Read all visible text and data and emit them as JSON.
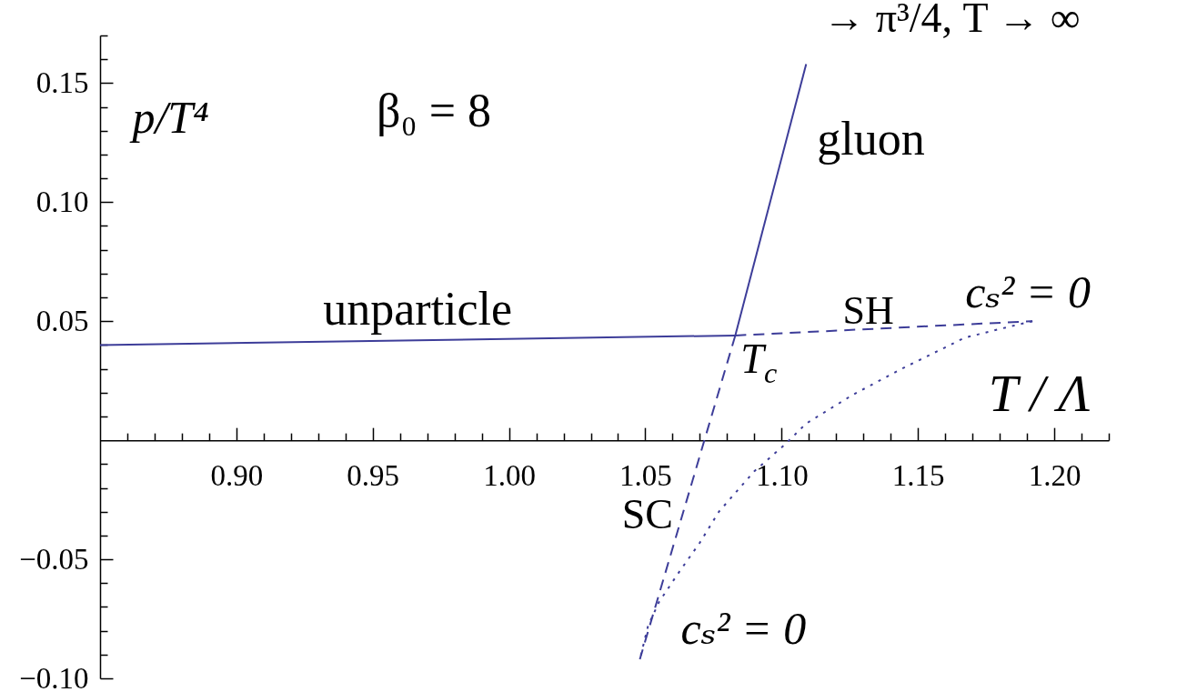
{
  "chart_data": {
    "type": "line",
    "xlabel": "T / Λ",
    "ylabel": "p/T⁴",
    "xlim": [
      0.85,
      1.22
    ],
    "ylim": [
      -0.1,
      0.17
    ],
    "xticks": [
      {
        "value": 0.86,
        "label": null
      },
      {
        "value": 0.87,
        "label": null
      },
      {
        "value": 0.88,
        "label": null
      },
      {
        "value": 0.89,
        "label": null
      },
      {
        "value": 0.9,
        "label": "0.90"
      },
      {
        "value": 0.91,
        "label": null
      },
      {
        "value": 0.92,
        "label": null
      },
      {
        "value": 0.93,
        "label": null
      },
      {
        "value": 0.94,
        "label": null
      },
      {
        "value": 0.95,
        "label": "0.95"
      },
      {
        "value": 0.96,
        "label": null
      },
      {
        "value": 0.97,
        "label": null
      },
      {
        "value": 0.98,
        "label": null
      },
      {
        "value": 0.99,
        "label": null
      },
      {
        "value": 1.0,
        "label": "1.00"
      },
      {
        "value": 1.01,
        "label": null
      },
      {
        "value": 1.02,
        "label": null
      },
      {
        "value": 1.03,
        "label": null
      },
      {
        "value": 1.04,
        "label": null
      },
      {
        "value": 1.05,
        "label": "1.05"
      },
      {
        "value": 1.06,
        "label": null
      },
      {
        "value": 1.07,
        "label": null
      },
      {
        "value": 1.08,
        "label": null
      },
      {
        "value": 1.09,
        "label": null
      },
      {
        "value": 1.1,
        "label": "1.10"
      },
      {
        "value": 1.11,
        "label": null
      },
      {
        "value": 1.12,
        "label": null
      },
      {
        "value": 1.13,
        "label": null
      },
      {
        "value": 1.14,
        "label": null
      },
      {
        "value": 1.15,
        "label": "1.15"
      },
      {
        "value": 1.16,
        "label": null
      },
      {
        "value": 1.17,
        "label": null
      },
      {
        "value": 1.18,
        "label": null
      },
      {
        "value": 1.19,
        "label": null
      },
      {
        "value": 1.2,
        "label": "1.20"
      },
      {
        "value": 1.21,
        "label": null
      },
      {
        "value": 1.22,
        "label": null
      }
    ],
    "yticks": [
      {
        "value": -0.1,
        "label": "−0.10"
      },
      {
        "value": -0.09,
        "label": null
      },
      {
        "value": -0.08,
        "label": null
      },
      {
        "value": -0.07,
        "label": null
      },
      {
        "value": -0.06,
        "label": null
      },
      {
        "value": -0.05,
        "label": "−0.05"
      },
      {
        "value": -0.04,
        "label": null
      },
      {
        "value": -0.03,
        "label": null
      },
      {
        "value": -0.02,
        "label": null
      },
      {
        "value": -0.01,
        "label": null
      },
      {
        "value": 0.01,
        "label": null
      },
      {
        "value": 0.02,
        "label": null
      },
      {
        "value": 0.03,
        "label": null
      },
      {
        "value": 0.04,
        "label": null
      },
      {
        "value": 0.05,
        "label": "0.05"
      },
      {
        "value": 0.06,
        "label": null
      },
      {
        "value": 0.07,
        "label": null
      },
      {
        "value": 0.08,
        "label": null
      },
      {
        "value": 0.09,
        "label": null
      },
      {
        "value": 0.1,
        "label": "0.10"
      },
      {
        "value": 0.11,
        "label": null
      },
      {
        "value": 0.12,
        "label": null
      },
      {
        "value": 0.13,
        "label": null
      },
      {
        "value": 0.14,
        "label": null
      },
      {
        "value": 0.15,
        "label": "0.15"
      },
      {
        "value": 0.16,
        "label": null
      },
      {
        "value": 0.17,
        "label": null
      }
    ],
    "series": [
      {
        "name": "unparticle",
        "color": "#3d3d99",
        "line_style": "solid",
        "x": [
          0.85,
          1.083
        ],
        "values": [
          0.04,
          0.044
        ]
      },
      {
        "name": "gluon",
        "color": "#3d3d99",
        "line_style": "solid",
        "x": [
          1.083,
          1.109
        ],
        "values": [
          0.044,
          0.158
        ]
      },
      {
        "name": "SH",
        "color": "#3d3d99",
        "line_style": "dashed",
        "x": [
          1.083,
          1.192
        ],
        "values": [
          0.044,
          0.05
        ]
      },
      {
        "name": "SC",
        "color": "#3d3d99",
        "line_style": "dashed",
        "x": [
          1.083,
          1.048
        ],
        "values": [
          0.044,
          -0.092
        ]
      },
      {
        "color": "#3d3d99",
        "line_style": "dotted",
        "x": [
          1.192,
          1.181,
          1.167,
          1.16,
          1.144,
          1.126,
          1.109,
          1.101,
          1.09,
          1.077,
          1.07,
          1.062,
          1.055,
          1.051,
          1.048
        ],
        "values": [
          0.05,
          0.047,
          0.043,
          0.039,
          0.03,
          0.019,
          0.007,
          -0.002,
          -0.013,
          -0.03,
          -0.043,
          -0.056,
          -0.068,
          -0.078,
          -0.092
        ]
      }
    ],
    "annotations": [
      "β₀ = 8",
      {
        "text": "→ π³/4, T → ∞",
        "x": 1.109,
        "y": 0.158
      },
      {
        "text": "T$_{c}$",
        "x": 1.083,
        "y": 0.044
      },
      {
        "text": "cₛ² = 0",
        "x": 1.192,
        "y": 0.05
      },
      {
        "text": "cₛ² = 0",
        "x": 1.048,
        "y": -0.092
      }
    ]
  }
}
